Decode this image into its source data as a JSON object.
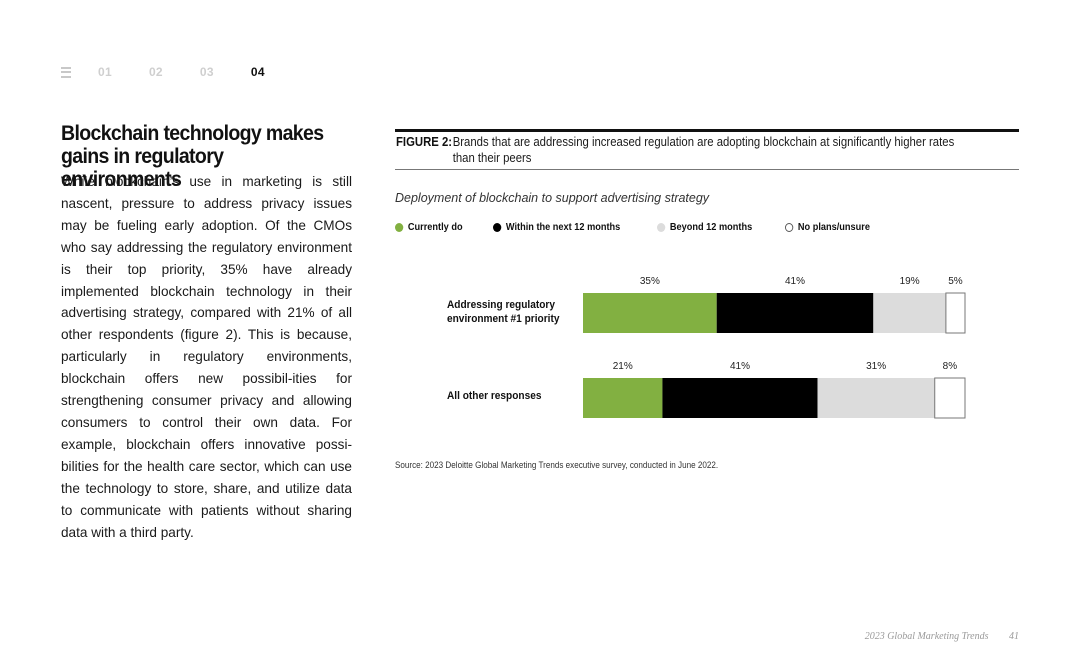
{
  "nav": {
    "items": [
      {
        "label": "01",
        "active": false
      },
      {
        "label": "02",
        "active": false
      },
      {
        "label": "03",
        "active": false
      },
      {
        "label": "04",
        "active": true
      }
    ]
  },
  "article": {
    "headline": "Blockchain technology makes gains in regulatory environments",
    "body": "While blockchain’s use in marketing is still nascent, pressure to address privacy issues may be fueling early adoption. Of the CMOs who say addressing the regulatory environment is their top priority, 35% have already implemented blockchain technology in their advertising strategy, compared with 21% of all other respondents (figure 2). This is because, particularly in regulatory environments, blockchain offers new possibil-ities for strengthening consumer privacy and allowing consumers to control their own data. For example, blockchain offers innovative possi-bilities for the health care sector, which can use the technology to store, share, and utilize data to communicate with patients without sharing data with a third party."
  },
  "figure": {
    "label": "FIGURE 2:",
    "caption": "Brands that are addressing increased regulation are adopting blockchain at significantly higher rates than their peers",
    "source": "Source: 2023 Deloitte Global Marketing Trends executive survey, conducted in June 2022."
  },
  "chart_data": {
    "type": "bar",
    "orientation": "horizontal",
    "stacked": true,
    "title": "Deployment of blockchain to support advertising strategy",
    "categories": [
      "Addressing regulatory environment #1 priority",
      "All other responses"
    ],
    "series": [
      {
        "name": "Currently do",
        "values": [
          35,
          21
        ],
        "labels": [
          "35%",
          "21%"
        ],
        "color": "#82b041"
      },
      {
        "name": "Within the next 12 months",
        "values": [
          41,
          41
        ],
        "labels": [
          "41%",
          "41%"
        ],
        "color": "#000000"
      },
      {
        "name": "Beyond 12 months",
        "values": [
          19,
          31
        ],
        "labels": [
          "19%",
          "31%"
        ],
        "color": "#dcdcdc"
      },
      {
        "name": "No plans/unsure",
        "values": [
          5,
          8
        ],
        "labels": [
          "5%",
          "8%"
        ],
        "color": "#ffffff"
      }
    ],
    "legend_position": "top-left",
    "grid": false
  },
  "footer": {
    "publication": "2023 Global Marketing Trends",
    "page": "41"
  },
  "colors": {
    "text": "#111111",
    "muted": "#cfcfcf",
    "green": "#82b041"
  }
}
